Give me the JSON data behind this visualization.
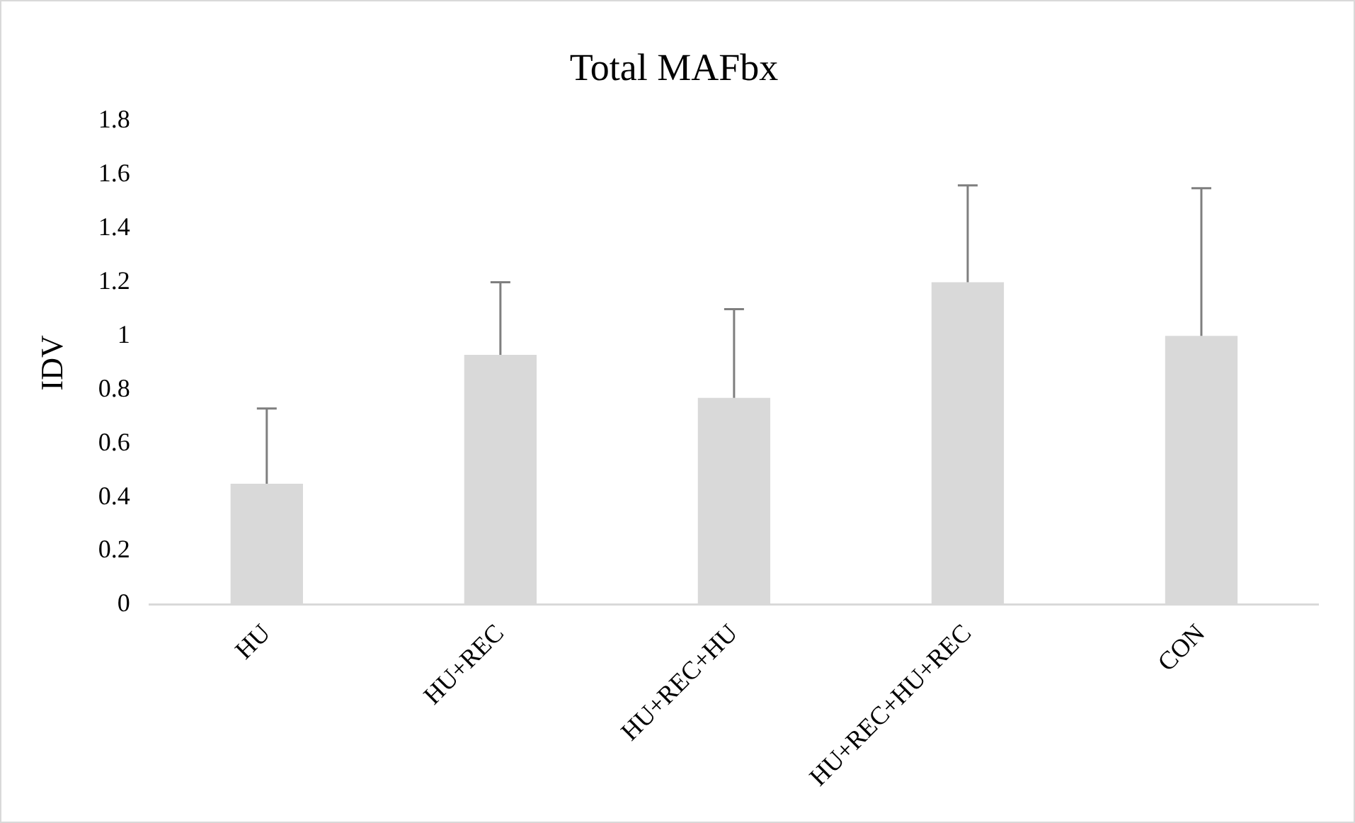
{
  "chart_data": {
    "type": "bar",
    "title": "Total MAFbx",
    "ylabel": "IDV",
    "categories": [
      "HU",
      "HU+REC",
      "HU+REC+HU",
      "HU+REC+HU+REC",
      "CON"
    ],
    "values": [
      0.45,
      0.93,
      0.77,
      1.2,
      1.0
    ],
    "errors": [
      [
        0.45,
        0.73
      ],
      [
        0.93,
        1.2
      ],
      [
        0.77,
        1.1
      ],
      [
        1.2,
        1.56
      ],
      [
        1.0,
        1.55
      ]
    ],
    "color": "#d9d9d9",
    "ylim": [
      0,
      1.8
    ],
    "yticks": [
      0,
      0.2,
      0.4,
      0.6,
      0.8,
      1,
      1.2,
      1.4,
      1.6,
      1.8
    ],
    "grid": false,
    "legend": false
  }
}
